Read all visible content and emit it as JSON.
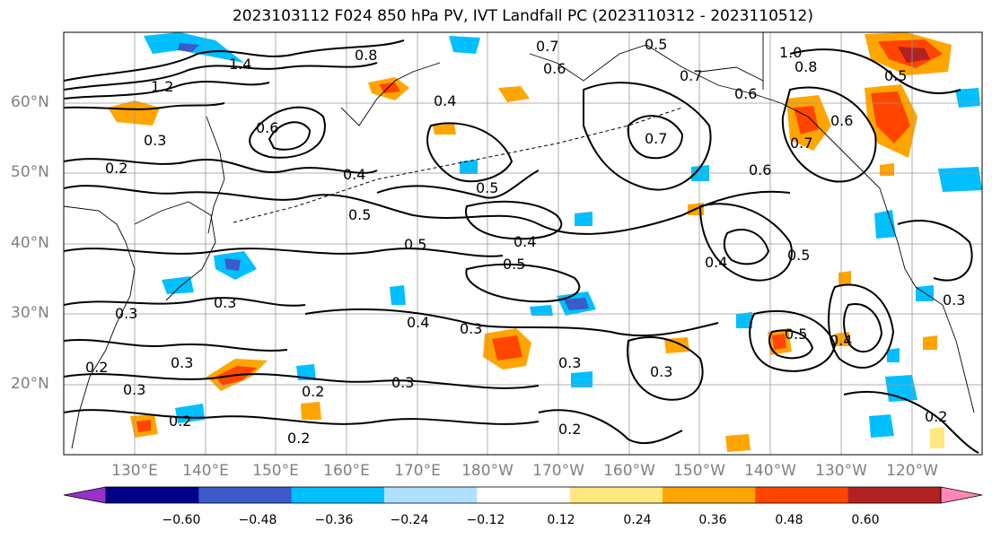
{
  "title": "2023103112 F024 850 hPa PV, IVT Landfall PC (2023110312 - 2023110512)",
  "lat_labels": [
    "60°N",
    "50°N",
    "40°N",
    "30°N",
    "20°N"
  ],
  "lon_labels": [
    "130°E",
    "140°E",
    "150°E",
    "160°E",
    "170°E",
    "180°W",
    "170°W",
    "160°W",
    "150°W",
    "140°W",
    "130°W",
    "120°W"
  ],
  "colorbar": {
    "colors": [
      "#9932cc",
      "#00008b",
      "#3a5bc8",
      "#00bfff",
      "#b0e0ff",
      "#ffffff",
      "#ffe880",
      "#ffa500",
      "#ff4500",
      "#b22222",
      "#ff88b8"
    ],
    "tick_labels": [
      "−0.60",
      "−0.48",
      "−0.36",
      "−0.24",
      "−0.12",
      "0.12",
      "0.24",
      "0.36",
      "0.48",
      "0.60"
    ]
  },
  "contour_labels": [
    "0.8",
    "0.7",
    "0.6",
    "0.5",
    "0.4",
    "0.3",
    "0.2",
    "1.4",
    "1.2",
    "1.0"
  ],
  "contour_label_instances": [
    {
      "text": "0.8"
    },
    {
      "text": "0.7"
    },
    {
      "text": "0.5"
    },
    {
      "text": "0.4"
    },
    {
      "text": "0.6"
    },
    {
      "text": "1.4"
    },
    {
      "text": "1.2"
    },
    {
      "text": "0.7"
    },
    {
      "text": "0.3"
    },
    {
      "text": "0.2"
    },
    {
      "text": "0.6"
    },
    {
      "text": "0.4"
    },
    {
      "text": "0.5"
    },
    {
      "text": "0.5"
    },
    {
      "text": "0.4"
    },
    {
      "text": "0.5"
    },
    {
      "text": "0.6"
    },
    {
      "text": "0.7"
    },
    {
      "text": "0.6"
    },
    {
      "text": "0.5"
    },
    {
      "text": "0.5"
    },
    {
      "text": "0.4"
    },
    {
      "text": "0.3"
    },
    {
      "text": "0.4"
    },
    {
      "text": "0.3"
    },
    {
      "text": "0.3"
    },
    {
      "text": "0.3"
    },
    {
      "text": "0.2"
    },
    {
      "text": "0.3"
    },
    {
      "text": "0.2"
    },
    {
      "text": "0.2"
    },
    {
      "text": "0.3"
    },
    {
      "text": "0.2"
    },
    {
      "text": "0.3"
    },
    {
      "text": "0.2"
    },
    {
      "text": "0.5"
    },
    {
      "text": "0.4"
    },
    {
      "text": "0.6"
    },
    {
      "text": "0.3"
    },
    {
      "text": "1.0"
    },
    {
      "text": "0.8"
    },
    {
      "text": "0.7"
    },
    {
      "text": "0.5"
    },
    {
      "text": "0.2"
    },
    {
      "text": "0.3"
    }
  ]
}
